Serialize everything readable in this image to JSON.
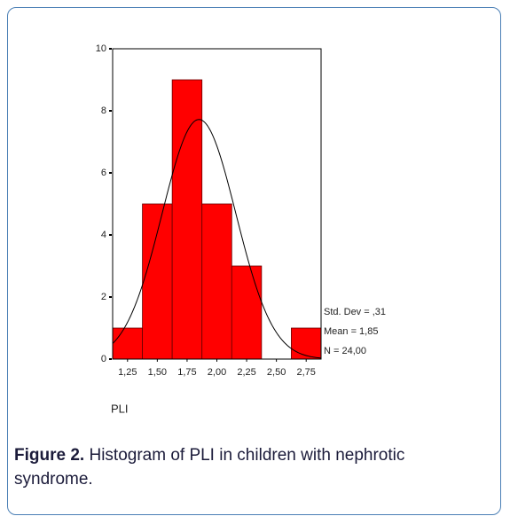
{
  "chart_data": {
    "type": "histogram",
    "bins": [
      1.125,
      1.375,
      1.625,
      1.875,
      2.125,
      2.375,
      2.625,
      2.875
    ],
    "counts": [
      1,
      5,
      9,
      5,
      3,
      0,
      1
    ],
    "color": "#ff0000",
    "xlabel": "PLI",
    "xlim": [
      1.125,
      2.875
    ],
    "xticks": [
      {
        "value": 1.25,
        "label": "1,25"
      },
      {
        "value": 1.5,
        "label": "1,50"
      },
      {
        "value": 1.75,
        "label": "1,75"
      },
      {
        "value": 2.0,
        "label": "2,00"
      },
      {
        "value": 2.25,
        "label": "2,25"
      },
      {
        "value": 2.5,
        "label": "2,50"
      },
      {
        "value": 2.75,
        "label": "2,75"
      }
    ],
    "ylim": [
      0,
      10
    ],
    "yticks": [
      0,
      2,
      4,
      6,
      8,
      10
    ],
    "stats": {
      "std_dev": {
        "value": 0.31,
        "label": "Std. Dev = ,31"
      },
      "mean": {
        "value": 1.85,
        "label": "Mean = 1,85"
      },
      "n": {
        "value": 24,
        "label": "N = 24,00"
      }
    }
  },
  "caption": {
    "label": "Figure 2.",
    "text": " Histogram of PLI in children with nephrotic syndrome."
  }
}
